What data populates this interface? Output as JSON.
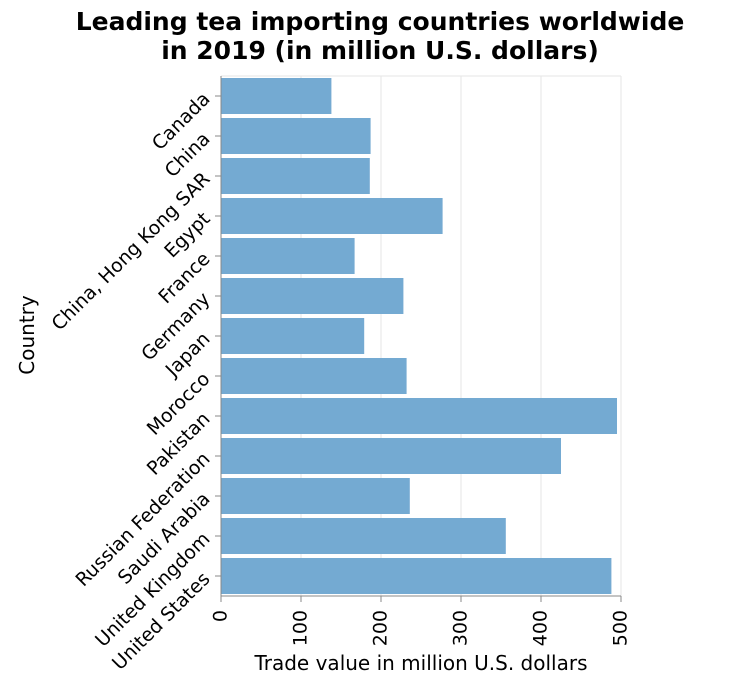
{
  "chart_data": {
    "type": "bar",
    "orientation": "horizontal",
    "title": [
      "Leading tea importing countries worldwide",
      "in 2019 (in million U.S. dollars)"
    ],
    "xlabel": "Trade value in million U.S. dollars",
    "ylabel": "Country",
    "xlim": [
      0,
      500
    ],
    "xticks": [
      0,
      100,
      200,
      300,
      400,
      500
    ],
    "grid": true,
    "bar_color": "#74aad2",
    "categories": [
      "Canada",
      "China",
      "China, Hong Kong SAR",
      "Egypt",
      "France",
      "Germany",
      "Japan",
      "Morocco",
      "Pakistan",
      "Russian Federation",
      "Saudi Arabia",
      "United Kingdom",
      "United States"
    ],
    "values": [
      138,
      187,
      186,
      277,
      167,
      228,
      179,
      232,
      495,
      425,
      236,
      356,
      488
    ]
  }
}
